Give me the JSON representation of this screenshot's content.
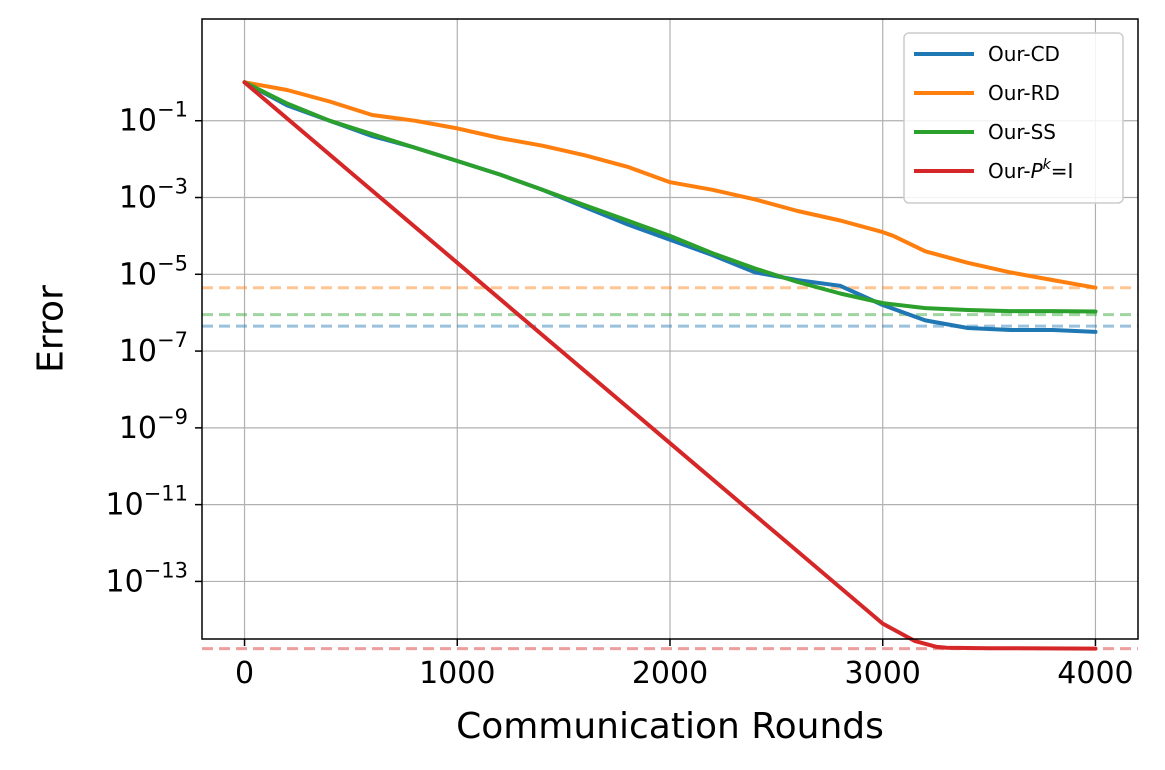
{
  "chart_data": {
    "type": "line",
    "xlabel": "Communication Rounds",
    "ylabel": "Error",
    "y_scale": "log",
    "xlim": [
      -200,
      4200
    ],
    "ylim_exp": [
      -14.5,
      1.65
    ],
    "xticks": [
      0,
      1000,
      2000,
      3000,
      4000
    ],
    "yticks_exp": [
      -1,
      -3,
      -5,
      -7,
      -9,
      -11,
      -13
    ],
    "grid": true,
    "legend_position": "top-right",
    "legend": [
      {
        "name": "Our-CD",
        "color": "#1f77b4"
      },
      {
        "name": "Our-RD",
        "color": "#ff7f0e"
      },
      {
        "name": "Our-SS",
        "color": "#2ca02c"
      },
      {
        "name": "Our-P^k=I",
        "color": "#d62728"
      }
    ],
    "series": [
      {
        "name": "Our-CD",
        "color": "#1f77b4",
        "x": [
          0,
          200,
          400,
          600,
          800,
          1000,
          1200,
          1400,
          1600,
          1800,
          2000,
          2200,
          2400,
          2600,
          2800,
          3000,
          3200,
          3400,
          3600,
          3800,
          4000
        ],
        "log10_y": [
          0,
          -0.6,
          -1.0,
          -1.4,
          -1.7,
          -2.05,
          -2.4,
          -2.8,
          -3.25,
          -3.7,
          -4.1,
          -4.5,
          -4.95,
          -5.15,
          -5.3,
          -5.8,
          -6.2,
          -6.4,
          -6.45,
          -6.45,
          -6.5
        ]
      },
      {
        "name": "Our-RD",
        "color": "#ff7f0e",
        "x": [
          0,
          200,
          400,
          600,
          800,
          1000,
          1200,
          1400,
          1600,
          1800,
          2000,
          2200,
          2400,
          2600,
          2800,
          3000,
          3050,
          3200,
          3400,
          3600,
          3800,
          4000
        ],
        "log10_y": [
          0,
          -0.2,
          -0.5,
          -0.85,
          -1.0,
          -1.2,
          -1.45,
          -1.65,
          -1.9,
          -2.2,
          -2.6,
          -2.8,
          -3.05,
          -3.35,
          -3.6,
          -3.9,
          -4.0,
          -4.4,
          -4.7,
          -4.95,
          -5.15,
          -5.35
        ]
      },
      {
        "name": "Our-SS",
        "color": "#2ca02c",
        "x": [
          0,
          200,
          400,
          600,
          800,
          1000,
          1200,
          1400,
          1600,
          1800,
          2000,
          2200,
          2400,
          2600,
          2800,
          3000,
          3200,
          3400,
          3600,
          3800,
          4000
        ],
        "log10_y": [
          0,
          -0.55,
          -1.0,
          -1.35,
          -1.7,
          -2.05,
          -2.4,
          -2.8,
          -3.2,
          -3.6,
          -4.0,
          -4.45,
          -4.85,
          -5.2,
          -5.5,
          -5.75,
          -5.88,
          -5.93,
          -5.96,
          -5.96,
          -5.97
        ]
      },
      {
        "name": "Our-P^k=I",
        "color": "#d62728",
        "x": [
          0,
          500,
          1000,
          1500,
          2000,
          2500,
          3000,
          3150,
          3250,
          3300,
          3500,
          4000
        ],
        "log10_y": [
          0,
          -2.35,
          -4.7,
          -7.05,
          -9.4,
          -11.75,
          -14.1,
          -14.55,
          -14.7,
          -14.73,
          -14.74,
          -14.75
        ]
      }
    ],
    "reference_lines": [
      {
        "series": "Our-RD",
        "log10_y": -5.35
      },
      {
        "series": "Our-SS",
        "log10_y": -6.05
      },
      {
        "series": "Our-CD",
        "log10_y": -6.35
      },
      {
        "series": "Our-P^k=I",
        "log10_y": -14.75
      }
    ]
  }
}
